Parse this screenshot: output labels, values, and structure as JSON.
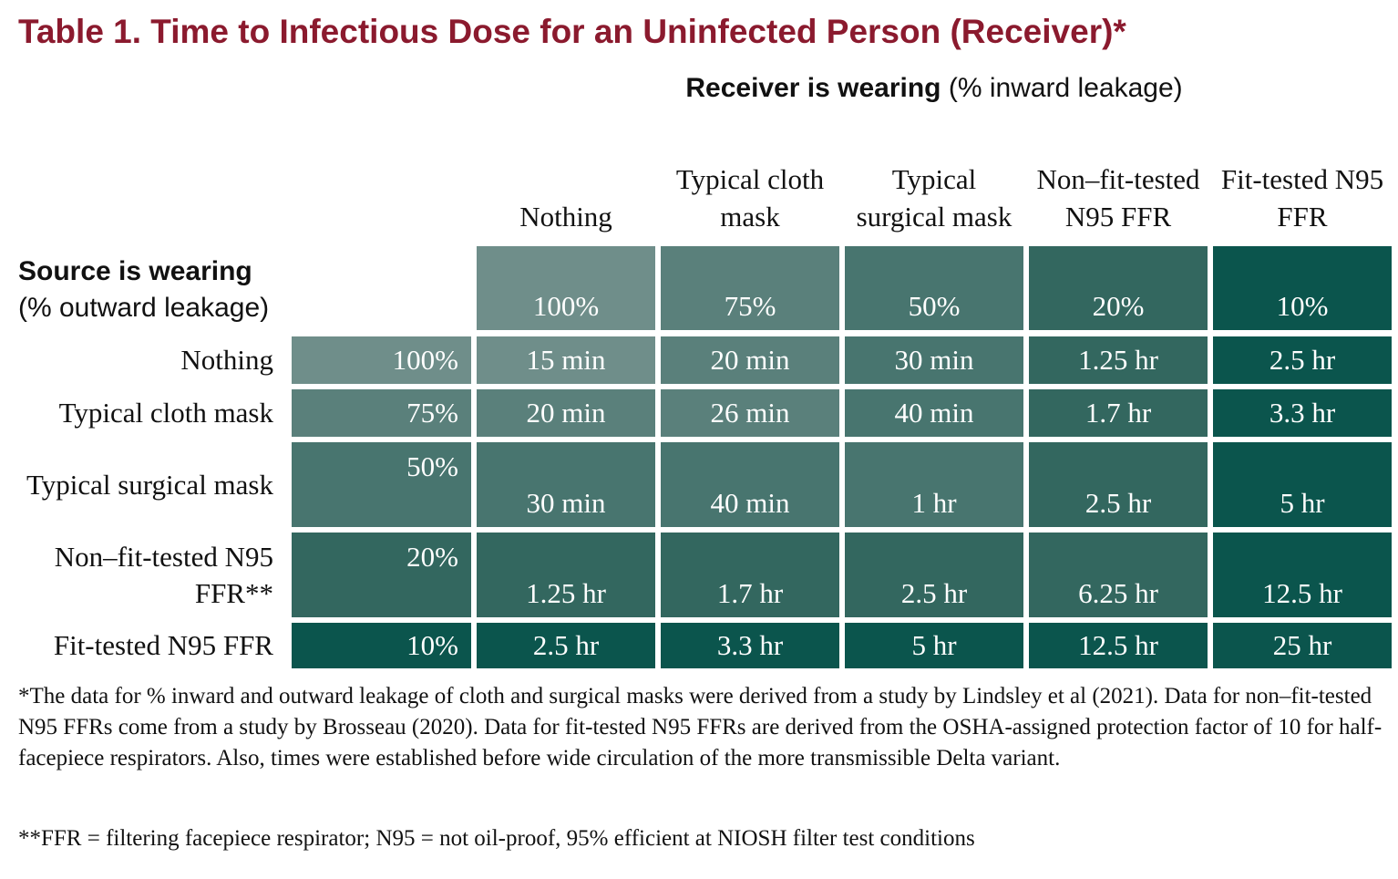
{
  "title": "Table 1. Time to Infectious Dose for an Uninfected Person (Receiver)*",
  "receiver": {
    "bold": "Receiver is wearing",
    "rest": " (% inward leakage)"
  },
  "source": {
    "bold": "Source is wearing",
    "rest": "(% outward leakage)"
  },
  "columns": [
    {
      "name": "Nothing",
      "pct": "100%",
      "color": "#6f8e8a"
    },
    {
      "name": "Typical cloth mask",
      "pct": "75%",
      "color": "#5a807b"
    },
    {
      "name": "Typical surgical mask",
      "pct": "50%",
      "color": "#48756f"
    },
    {
      "name": "Non–fit-tested N95 FFR",
      "pct": "20%",
      "color": "#33675f"
    },
    {
      "name": "Fit-tested N95 FFR",
      "pct": "10%",
      "color": "#0b554d"
    }
  ],
  "rows": [
    {
      "label": "Nothing",
      "pct": "100%",
      "color": "#6f8e8a",
      "values": [
        "15 min",
        "20 min",
        "30 min",
        "1.25 hr",
        "2.5 hr"
      ]
    },
    {
      "label": "Typical cloth mask",
      "pct": "75%",
      "color": "#5a807b",
      "values": [
        "20 min",
        "26 min",
        "40 min",
        "1.7 hr",
        "3.3 hr"
      ]
    },
    {
      "label": "Typical surgical mask",
      "pct": "50%",
      "color": "#48756f",
      "values": [
        "30 min",
        "40 min",
        "1 hr",
        "2.5 hr",
        "5 hr"
      ]
    },
    {
      "label": "Non–fit-tested N95 FFR**",
      "pct": "20%",
      "color": "#33675f",
      "values": [
        "1.25 hr",
        "1.7 hr",
        "2.5 hr",
        "6.25 hr",
        "12.5 hr"
      ]
    },
    {
      "label": "Fit-tested N95 FFR",
      "pct": "10%",
      "color": "#0b554d",
      "values": [
        "2.5 hr",
        "3.3 hr",
        "5 hr",
        "12.5 hr",
        "25 hr"
      ]
    }
  ],
  "footnote1": "*The data for % inward and outward leakage of cloth and surgical masks were derived from a study by Lindsley et al (2021). Data for non–fit-tested N95 FFRs come from a study by Brosseau (2020). Data for fit-tested N95 FFRs are derived from the OSHA-assigned protection factor of 10 for half-facepiece respirators. Also, times were established before wide circulation of the more transmissible Delta variant.",
  "footnote2": "**FFR = filtering facepiece respirator; N95 = not oil-proof, 95% efficient at NIOSH filter test conditions"
}
